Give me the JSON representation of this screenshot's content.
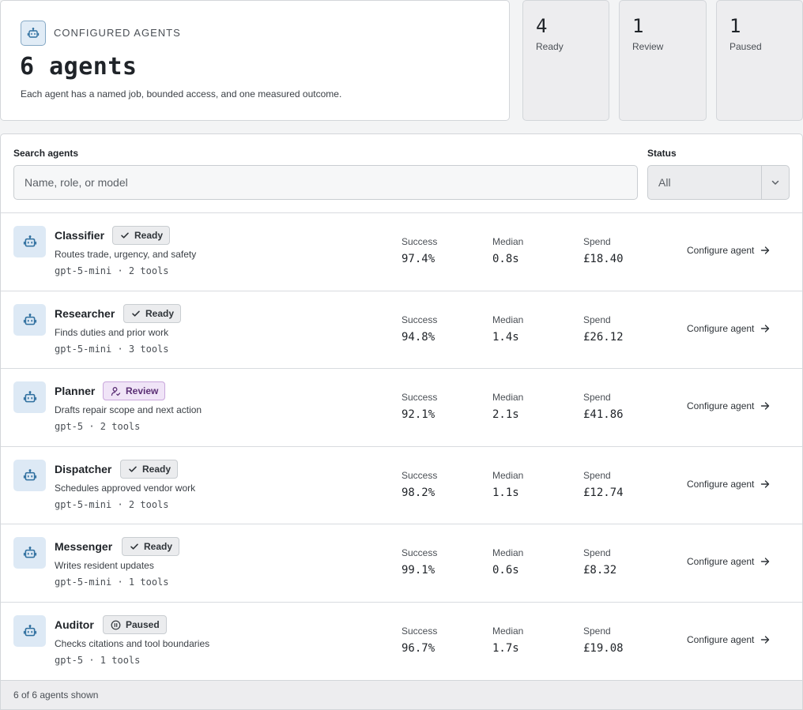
{
  "header": {
    "kicker": "CONFIGURED AGENTS",
    "title": "6 agents",
    "description": "Each agent has a named job, bounded access, and one measured outcome.",
    "icon": "robot-icon"
  },
  "stats": [
    {
      "value": "4",
      "label": "Ready"
    },
    {
      "value": "1",
      "label": "Review"
    },
    {
      "value": "1",
      "label": "Paused"
    }
  ],
  "filters": {
    "search_label": "Search agents",
    "search_placeholder": "Name, role, or model",
    "search_value": "",
    "status_label": "Status",
    "status_value": "All"
  },
  "metric_labels": {
    "success": "Success",
    "median": "Median",
    "spend": "Spend"
  },
  "configure_label": "Configure agent",
  "agents": [
    {
      "name": "Classifier",
      "status": "Ready",
      "status_icon": "check-icon",
      "description": "Routes trade, urgency, and safety",
      "meta": "gpt-5-mini · 2 tools",
      "success": "97.4%",
      "median": "0.8s",
      "spend": "£18.40"
    },
    {
      "name": "Researcher",
      "status": "Ready",
      "status_icon": "check-icon",
      "description": "Finds duties and prior work",
      "meta": "gpt-5-mini · 3 tools",
      "success": "94.8%",
      "median": "1.4s",
      "spend": "£26.12"
    },
    {
      "name": "Planner",
      "status": "Review",
      "status_icon": "user-check-icon",
      "description": "Drafts repair scope and next action",
      "meta": "gpt-5 · 2 tools",
      "success": "92.1%",
      "median": "2.1s",
      "spend": "£41.86"
    },
    {
      "name": "Dispatcher",
      "status": "Ready",
      "status_icon": "check-icon",
      "description": "Schedules approved vendor work",
      "meta": "gpt-5-mini · 2 tools",
      "success": "98.2%",
      "median": "1.1s",
      "spend": "£12.74"
    },
    {
      "name": "Messenger",
      "status": "Ready",
      "status_icon": "check-icon",
      "description": "Writes resident updates",
      "meta": "gpt-5-mini · 1 tools",
      "success": "99.1%",
      "median": "0.6s",
      "spend": "£8.32"
    },
    {
      "name": "Auditor",
      "status": "Paused",
      "status_icon": "pause-circle-icon",
      "description": "Checks citations and tool boundaries",
      "meta": "gpt-5 · 1 tools",
      "success": "96.7%",
      "median": "1.7s",
      "spend": "£19.08"
    }
  ],
  "footer": {
    "text": "6 of 6 agents shown"
  },
  "colors": {
    "accent_icon": "#2f6f9f",
    "review_badge": "#f0e4f7"
  }
}
